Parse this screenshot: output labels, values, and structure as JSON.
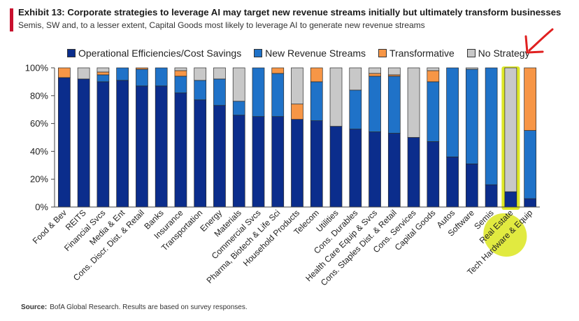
{
  "header": {
    "title": "Exhibit 13: Corporate strategies to leverage AI may target new revenue streams initially but ultimately transform businesses",
    "subtitle": "Semis, SW and, to a lesser extent, Capital Goods most likely to leverage AI to generate new revenue streams"
  },
  "source": {
    "label": "Source:",
    "text": "BofA Global Research. Results are based on survey responses."
  },
  "colors": {
    "operational": "#0b2d8c",
    "new_revenue": "#1f72c8",
    "transformative": "#f79646",
    "no_strategy": "#c8c8c8",
    "highlight": "#d7e300",
    "annotation": "#e02020",
    "title_accent": "#c8102e"
  },
  "chart_data": {
    "type": "bar",
    "stacked": true,
    "ylim": [
      0,
      100
    ],
    "yticks": [
      "0%",
      "20%",
      "40%",
      "60%",
      "80%",
      "100%"
    ],
    "legend_position": "top",
    "grid": false,
    "categories": [
      "Food & Bev",
      "REITS",
      "Financial Svcs",
      "Media & Ent",
      "Cons. Discr. Dist. & Retail",
      "Banks",
      "Insurance",
      "Transportation",
      "Energy",
      "Materials",
      "Commercial Svcs",
      "Pharma, Biotech & Life Sci",
      "Household Products",
      "Telecom",
      "Utilities",
      "Cons. Durables",
      "Health Care Equip & Svcs",
      "Cons. Staples Dist. & Retail",
      "Cons. Services",
      "Capital Goods",
      "Autos",
      "Software",
      "Semis",
      "Real Estate",
      "Tech Hardware & Equip"
    ],
    "series": [
      {
        "name": "Operational Efficiencies/Cost Savings",
        "values": [
          93,
          92,
          90,
          91,
          87,
          87,
          82,
          77,
          73,
          66,
          65,
          65,
          63,
          62,
          58,
          56,
          54,
          53,
          50,
          47,
          36,
          31,
          16,
          11,
          6
        ]
      },
      {
        "name": "New Revenue Streams",
        "values": [
          0,
          0,
          5,
          9,
          12,
          13,
          12,
          14,
          19,
          10,
          35,
          31,
          0,
          28,
          0,
          28,
          40,
          41,
          0,
          43,
          64,
          68,
          84,
          0,
          49
        ]
      },
      {
        "name": "Transformative",
        "values": [
          7,
          0,
          2,
          0,
          1,
          0,
          4,
          0,
          0,
          0,
          0,
          4,
          11,
          10,
          0,
          0,
          2,
          1,
          0,
          8,
          0,
          0,
          0,
          0,
          45
        ]
      },
      {
        "name": "No Strategy",
        "values": [
          0,
          8,
          3,
          0,
          0,
          0,
          2,
          9,
          8,
          24,
          0,
          0,
          26,
          0,
          42,
          16,
          4,
          5,
          50,
          2,
          0,
          1,
          0,
          89,
          0
        ]
      }
    ],
    "highlighted_category": "Real Estate"
  }
}
